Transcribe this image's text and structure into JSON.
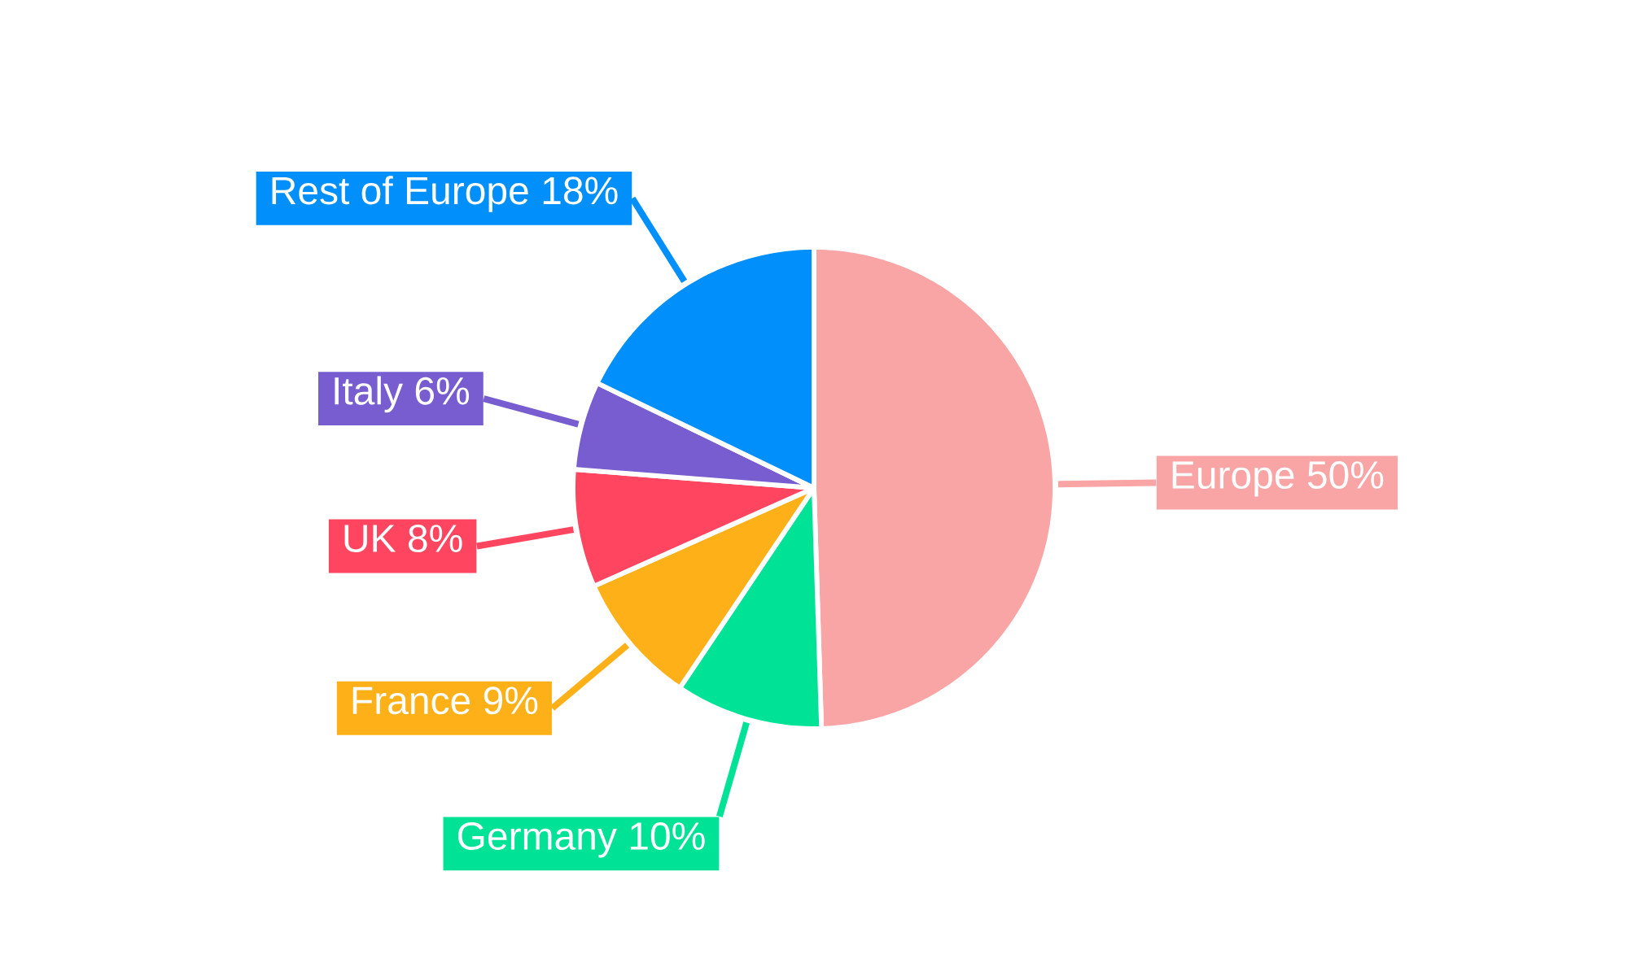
{
  "chart_data": {
    "type": "pie",
    "categories": [
      "Europe",
      "Germany",
      "France",
      "UK",
      "Italy",
      "Rest of Europe"
    ],
    "values": [
      50,
      10,
      9,
      8,
      6,
      18
    ],
    "colors": [
      "#f9a5a6",
      "#00e396",
      "#feb019",
      "#ff4560",
      "#775dd0",
      "#008ffb"
    ],
    "value_labels": [
      "50%",
      "10%",
      "9%",
      "8%",
      "6%",
      "18%"
    ]
  }
}
